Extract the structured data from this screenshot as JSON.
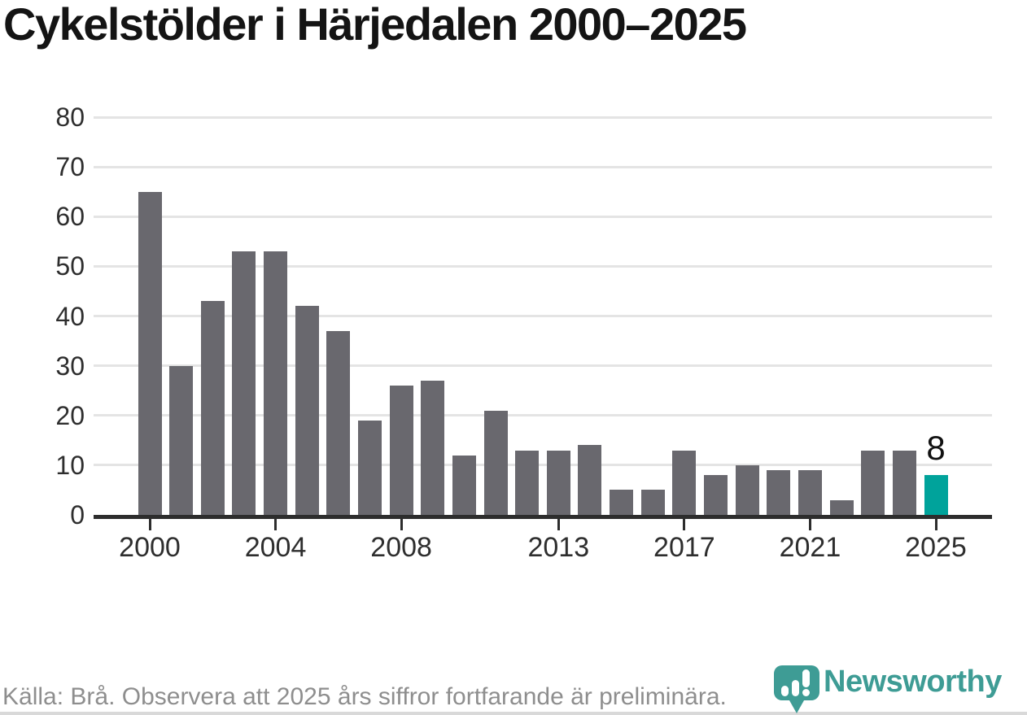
{
  "title": "Cykelstölder i Härjedalen 2000–2025",
  "footer": {
    "source_note": "Källa: Brå. Observera att 2025 års siffror fortfarande är preliminära."
  },
  "branding": {
    "logo_text": "Newsworthy"
  },
  "colors": {
    "bar": "#69686E",
    "highlight": "#00A39B",
    "grid": "#E4E4E4",
    "axis_line": "#2D2D2D",
    "axis_text": "#2E2E2E",
    "title_text": "#141414",
    "data_label": "#111111",
    "footer_text": "#8E8E8E",
    "logo_teal": "#3E9C95",
    "bottom_rule": "#D9D9D9",
    "background": "#FFFFFF"
  },
  "chart_data": {
    "type": "bar",
    "title": "Cykelstölder i Härjedalen 2000–2025",
    "categories": [
      "2000",
      "2001",
      "2002",
      "2003",
      "2004",
      "2005",
      "2006",
      "2007",
      "2008",
      "2009",
      "2010",
      "2011",
      "2012",
      "2013",
      "2014",
      "2015",
      "2016",
      "2017",
      "2018",
      "2019",
      "2020",
      "2021",
      "2022",
      "2023",
      "2024",
      "2025"
    ],
    "values": [
      65,
      30,
      43,
      53,
      53,
      42,
      37,
      19,
      26,
      27,
      12,
      21,
      13,
      13,
      14,
      5,
      5,
      13,
      8,
      10,
      9,
      9,
      3,
      13,
      13,
      8
    ],
    "highlight": {
      "category": "2025",
      "value": 8,
      "label": "8"
    },
    "x_tick_labels": [
      "2000",
      "2004",
      "2008",
      "2013",
      "2017",
      "2021",
      "2025"
    ],
    "y_ticks": [
      0,
      10,
      20,
      30,
      40,
      50,
      60,
      70,
      80
    ],
    "ylim": [
      0,
      80
    ],
    "xlabel": "",
    "ylabel": "",
    "grid": "horizontal",
    "legend": "none"
  }
}
